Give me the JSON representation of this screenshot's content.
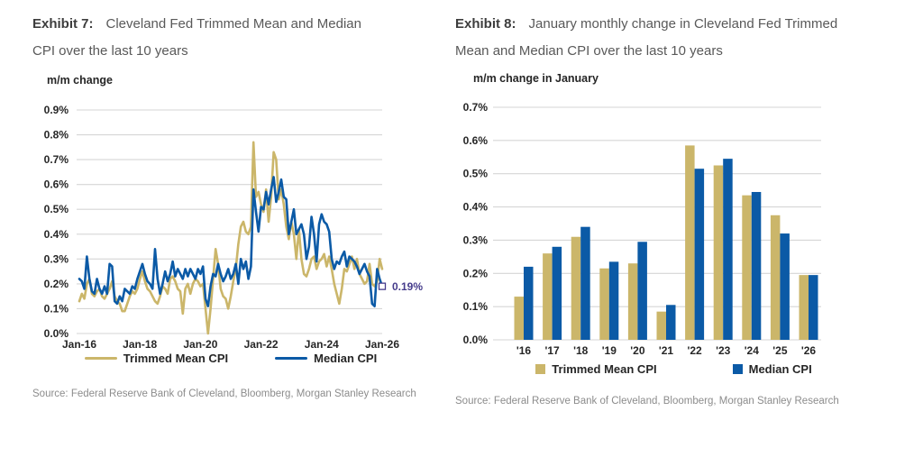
{
  "colors": {
    "gridline": "#D6D6D6",
    "tick_text": "#262626",
    "title_label": "#3D3D3D",
    "title_text": "#595959",
    "source_text": "#8C8C8C"
  },
  "chart_data": [
    {
      "type": "line",
      "exhibit_label": "Exhibit 7:",
      "title": "Cleveland Fed Trimmed Mean and Median CPI over the last 10 years",
      "ylabel": "m/m change",
      "ylim": [
        0.0,
        0.9
      ],
      "y_tick_labels": [
        "0.9%",
        "0.8%",
        "0.7%",
        "0.6%",
        "0.5%",
        "0.4%",
        "0.3%",
        "0.2%",
        "0.1%",
        "0.0%"
      ],
      "x_tick_labels": [
        "Jan-16",
        "Jan-18",
        "Jan-20",
        "Jan-22",
        "Jan-24",
        "Jan-26"
      ],
      "x_months_per_tick": 24,
      "x_start": "Jan-16",
      "x_end": "Jan-26",
      "grid": "horizontal",
      "legend_position": "bottom",
      "series": [
        {
          "name": "Trimmed Mean CPI",
          "color": "#CBB66A",
          "values": [
            0.13,
            0.16,
            0.14,
            0.2,
            0.22,
            0.16,
            0.15,
            0.17,
            0.18,
            0.15,
            0.14,
            0.16,
            0.18,
            0.21,
            0.15,
            0.13,
            0.12,
            0.09,
            0.09,
            0.12,
            0.15,
            0.17,
            0.16,
            0.18,
            0.22,
            0.25,
            0.21,
            0.18,
            0.17,
            0.15,
            0.13,
            0.12,
            0.15,
            0.19,
            0.18,
            0.16,
            0.22,
            0.23,
            0.21,
            0.18,
            0.17,
            0.08,
            0.18,
            0.2,
            0.16,
            0.2,
            0.22,
            0.21,
            0.19,
            0.2,
            0.1,
            0.0,
            0.1,
            0.22,
            0.34,
            0.28,
            0.18,
            0.15,
            0.14,
            0.1,
            0.15,
            0.21,
            0.26,
            0.36,
            0.43,
            0.45,
            0.41,
            0.4,
            0.43,
            0.77,
            0.55,
            0.57,
            0.52,
            0.49,
            0.58,
            0.45,
            0.55,
            0.73,
            0.7,
            0.54,
            0.58,
            0.52,
            0.43,
            0.38,
            0.45,
            0.4,
            0.3,
            0.42,
            0.3,
            0.24,
            0.23,
            0.26,
            0.3,
            0.31,
            0.26,
            0.29,
            0.3,
            0.32,
            0.27,
            0.31,
            0.26,
            0.2,
            0.16,
            0.12,
            0.18,
            0.26,
            0.25,
            0.28,
            0.31,
            0.26,
            0.3,
            0.24,
            0.22,
            0.2,
            0.21,
            0.28,
            0.2,
            0.19,
            0.21,
            0.3,
            0.26
          ]
        },
        {
          "name": "Median CPI",
          "color": "#0B5AA6",
          "values": [
            0.22,
            0.21,
            0.18,
            0.31,
            0.22,
            0.17,
            0.16,
            0.22,
            0.18,
            0.16,
            0.19,
            0.16,
            0.28,
            0.27,
            0.13,
            0.12,
            0.15,
            0.13,
            0.18,
            0.17,
            0.16,
            0.19,
            0.18,
            0.22,
            0.25,
            0.28,
            0.24,
            0.21,
            0.2,
            0.18,
            0.34,
            0.22,
            0.16,
            0.2,
            0.25,
            0.21,
            0.24,
            0.29,
            0.23,
            0.26,
            0.24,
            0.22,
            0.26,
            0.23,
            0.26,
            0.24,
            0.22,
            0.26,
            0.24,
            0.27,
            0.14,
            0.11,
            0.19,
            0.24,
            0.23,
            0.28,
            0.24,
            0.21,
            0.23,
            0.26,
            0.22,
            0.24,
            0.28,
            0.2,
            0.3,
            0.26,
            0.29,
            0.22,
            0.27,
            0.58,
            0.49,
            0.41,
            0.51,
            0.5,
            0.57,
            0.52,
            0.58,
            0.63,
            0.53,
            0.57,
            0.62,
            0.55,
            0.54,
            0.4,
            0.45,
            0.5,
            0.4,
            0.42,
            0.44,
            0.4,
            0.3,
            0.35,
            0.47,
            0.4,
            0.29,
            0.44,
            0.48,
            0.45,
            0.44,
            0.41,
            0.3,
            0.26,
            0.29,
            0.28,
            0.31,
            0.33,
            0.27,
            0.31,
            0.3,
            0.29,
            0.27,
            0.24,
            0.26,
            0.28,
            0.25,
            0.23,
            0.12,
            0.11,
            0.26,
            0.22,
            0.19
          ]
        }
      ],
      "end_annotation": {
        "text": "0.19%",
        "value": 0.19,
        "series": "Median CPI",
        "color": "#463C8C"
      },
      "source": "Source: Federal Reserve Bank of Cleveland, Bloomberg, Morgan Stanley Research"
    },
    {
      "type": "bar",
      "exhibit_label": "Exhibit 8:",
      "title": "January monthly change in Cleveland Fed Trimmed Mean and Median CPI over the last 10 years",
      "ylabel": "m/m change in January",
      "ylim": [
        0.0,
        0.7
      ],
      "y_tick_labels": [
        "0.7%",
        "0.6%",
        "0.5%",
        "0.4%",
        "0.3%",
        "0.2%",
        "0.1%",
        "0.0%"
      ],
      "categories": [
        "'16",
        "'17",
        "'18",
        "'19",
        "'20",
        "'21",
        "'22",
        "'23",
        "'24",
        "'25",
        "'26"
      ],
      "grid": "horizontal",
      "legend_position": "bottom",
      "series": [
        {
          "name": "Trimmed Mean CPI",
          "color": "#CBB66A",
          "values": [
            0.13,
            0.26,
            0.31,
            0.215,
            0.23,
            0.085,
            0.585,
            0.525,
            0.435,
            0.375,
            0.195
          ]
        },
        {
          "name": "Median CPI",
          "color": "#0B5AA6",
          "values": [
            0.22,
            0.28,
            0.34,
            0.235,
            0.295,
            0.105,
            0.515,
            0.545,
            0.445,
            0.32,
            0.195
          ]
        }
      ],
      "source": "Source: Federal Reserve Bank of Cleveland, Bloomberg, Morgan Stanley Research"
    }
  ]
}
